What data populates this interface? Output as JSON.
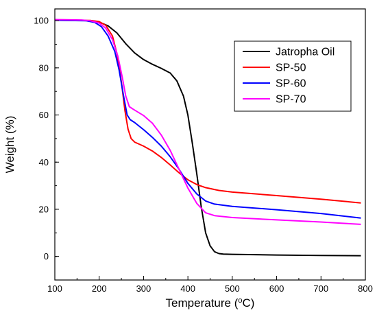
{
  "chart_data": {
    "type": "line",
    "title": "",
    "xlabel": "Temperature (",
    "xlabel_sup": "o",
    "xlabel_end": "C)",
    "ylabel": "Weight (%)",
    "xlim": [
      100,
      800
    ],
    "ylim": [
      -10,
      105
    ],
    "xticks": [
      100,
      200,
      300,
      400,
      500,
      600,
      700,
      800
    ],
    "yticks": [
      0,
      20,
      40,
      60,
      80,
      100
    ],
    "grid": false,
    "legend_position": "top-right",
    "series": [
      {
        "name": "Jatropha Oil",
        "color": "#000000",
        "points": [
          [
            100,
            100.2
          ],
          [
            150,
            100.1
          ],
          [
            180,
            100
          ],
          [
            200,
            99.4
          ],
          [
            220,
            97.8
          ],
          [
            240,
            94.8
          ],
          [
            260,
            90.2
          ],
          [
            280,
            86.3
          ],
          [
            300,
            83.5
          ],
          [
            320,
            81.5
          ],
          [
            340,
            79.8
          ],
          [
            360,
            77.8
          ],
          [
            375,
            74.5
          ],
          [
            390,
            68
          ],
          [
            400,
            60
          ],
          [
            410,
            48
          ],
          [
            420,
            35
          ],
          [
            430,
            21
          ],
          [
            440,
            10
          ],
          [
            450,
            4.5
          ],
          [
            460,
            2
          ],
          [
            470,
            1.2
          ],
          [
            480,
            1
          ],
          [
            500,
            0.9
          ],
          [
            600,
            0.6
          ],
          [
            700,
            0.4
          ],
          [
            790,
            0.3
          ]
        ]
      },
      {
        "name": "SP-50",
        "color": "#ff0000",
        "points": [
          [
            100,
            100.3
          ],
          [
            180,
            100.1
          ],
          [
            200,
            99.6
          ],
          [
            215,
            98
          ],
          [
            230,
            93.5
          ],
          [
            240,
            86
          ],
          [
            250,
            74
          ],
          [
            258,
            62
          ],
          [
            265,
            54
          ],
          [
            272,
            50
          ],
          [
            280,
            48.5
          ],
          [
            300,
            46.8
          ],
          [
            320,
            44.7
          ],
          [
            340,
            42
          ],
          [
            360,
            38.8
          ],
          [
            380,
            35.5
          ],
          [
            400,
            32.5
          ],
          [
            420,
            30.5
          ],
          [
            440,
            29.2
          ],
          [
            470,
            28
          ],
          [
            500,
            27.3
          ],
          [
            600,
            25.8
          ],
          [
            700,
            24.3
          ],
          [
            790,
            22.7
          ]
        ]
      },
      {
        "name": "SP-60",
        "color": "#0000ff",
        "points": [
          [
            100,
            100.2
          ],
          [
            170,
            100
          ],
          [
            190,
            99.3
          ],
          [
            205,
            97.5
          ],
          [
            220,
            93.5
          ],
          [
            235,
            87
          ],
          [
            245,
            79
          ],
          [
            255,
            68
          ],
          [
            263,
            60
          ],
          [
            270,
            58
          ],
          [
            280,
            56.8
          ],
          [
            300,
            53.8
          ],
          [
            320,
            50.5
          ],
          [
            340,
            46.8
          ],
          [
            360,
            42.3
          ],
          [
            380,
            37
          ],
          [
            400,
            31
          ],
          [
            420,
            26.5
          ],
          [
            440,
            23.5
          ],
          [
            460,
            22.2
          ],
          [
            500,
            21.2
          ],
          [
            600,
            19.8
          ],
          [
            700,
            18.2
          ],
          [
            790,
            16.3
          ]
        ]
      },
      {
        "name": "SP-70",
        "color": "#ff00ff",
        "points": [
          [
            100,
            100.5
          ],
          [
            160,
            100.3
          ],
          [
            180,
            100
          ],
          [
            200,
            99
          ],
          [
            215,
            96.8
          ],
          [
            230,
            92
          ],
          [
            242,
            85
          ],
          [
            252,
            76
          ],
          [
            260,
            68
          ],
          [
            268,
            63.5
          ],
          [
            278,
            62.3
          ],
          [
            300,
            59.8
          ],
          [
            320,
            56.5
          ],
          [
            340,
            51.5
          ],
          [
            360,
            45
          ],
          [
            380,
            37
          ],
          [
            400,
            29
          ],
          [
            420,
            22.5
          ],
          [
            440,
            18.5
          ],
          [
            460,
            17.3
          ],
          [
            500,
            16.5
          ],
          [
            600,
            15.5
          ],
          [
            700,
            14.6
          ],
          [
            790,
            13.6
          ]
        ]
      }
    ]
  }
}
